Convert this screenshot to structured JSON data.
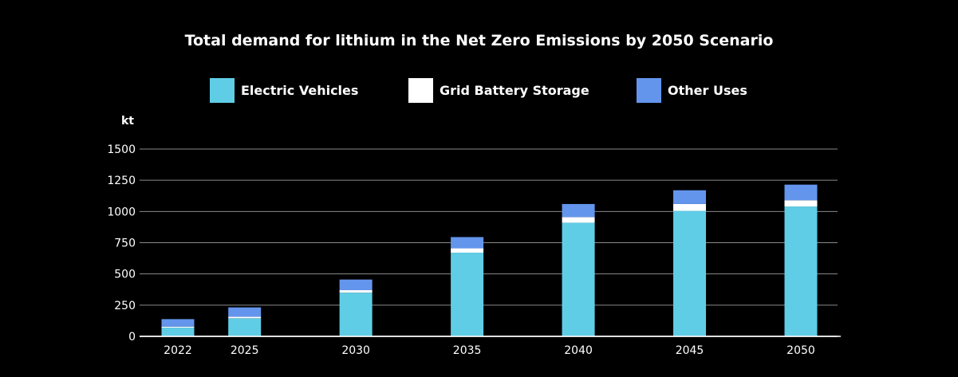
{
  "chart_data": {
    "type": "bar",
    "stacked": true,
    "title": "Total demand for lithium in the Net Zero Emissions by 2050 Scenario",
    "ylabel": "kt",
    "xlabel": "",
    "ylim": [
      0,
      1500
    ],
    "yticks": [
      0,
      250,
      500,
      750,
      1000,
      1250,
      1500
    ],
    "grid": true,
    "legend_position": "top",
    "categories": [
      "2022",
      "2025",
      "2030",
      "2035",
      "2040",
      "2045",
      "2050"
    ],
    "x_positions": [
      2022,
      2025,
      2030,
      2035,
      2040,
      2045,
      2050
    ],
    "series": [
      {
        "name": "Electric Vehicles",
        "color": "#60CDE6",
        "values": [
          70,
          145,
          350,
          670,
          910,
          1005,
          1040
        ]
      },
      {
        "name": "Grid Battery Storage",
        "color": "#FFFFFF",
        "values": [
          8,
          12,
          20,
          35,
          45,
          55,
          50
        ]
      },
      {
        "name": "Other Uses",
        "color": "#6495ED",
        "values": [
          60,
          75,
          85,
          90,
          105,
          110,
          125
        ]
      }
    ]
  }
}
